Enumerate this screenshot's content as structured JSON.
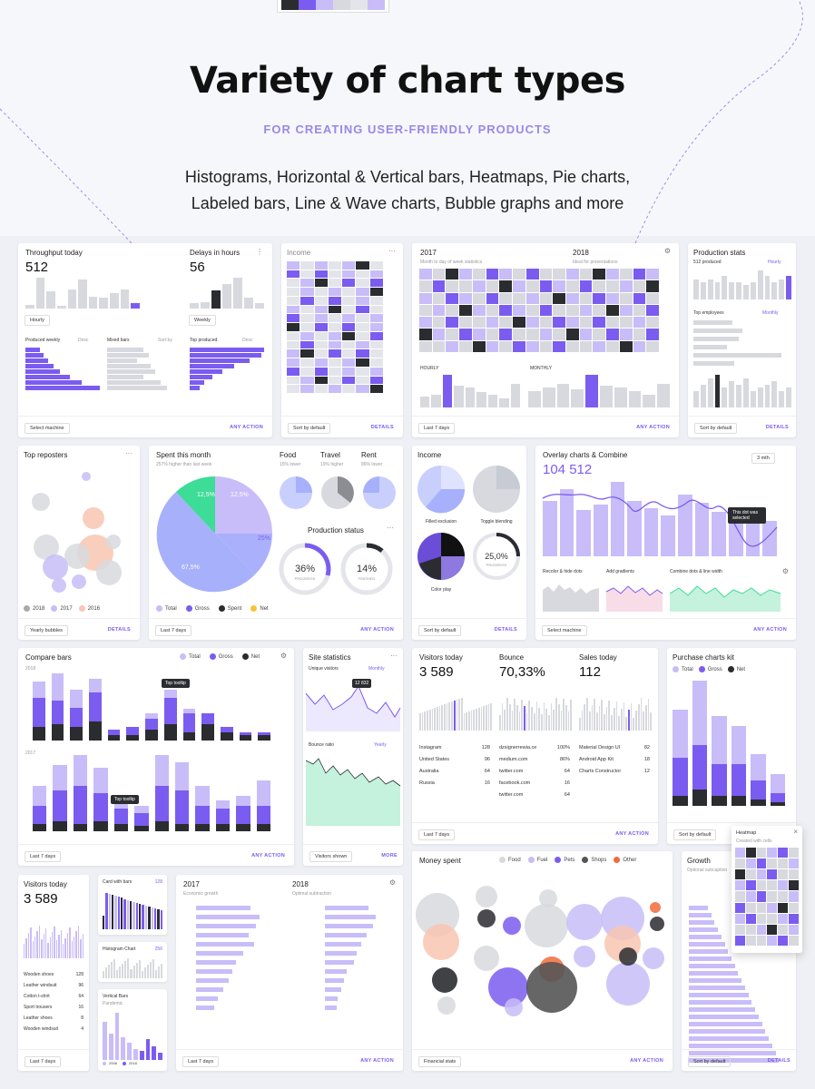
{
  "hero": {
    "title": "Variety of chart types",
    "subtitle": "FOR CREATING USER-FRIENDLY PRODUCTS",
    "desc_line1": "Histograms, Horizontal & Vertical bars, Heatmaps, Pie charts,",
    "desc_line2": "Labeled bars, Line & Wave charts, Bubble graphs and more",
    "swatches": [
      "#2b2c30",
      "#7b5cf0",
      "#c8bdf8",
      "#d8d9de",
      "#e4e5ea",
      "#c8bdf8"
    ]
  },
  "colors": {
    "accent": "#7b5cf0",
    "light": "#c8bdf8",
    "gray": "#d8d9de",
    "dark": "#2b2c30",
    "green": "#3ddc97",
    "orange": "#f26b3a"
  },
  "throughput": {
    "title": "Throughput today",
    "value": "512",
    "delays_title": "Delays in hours",
    "delays_value": "56",
    "hourly": "Hourly",
    "weekly": "Weekly",
    "produced_weekly": "Produced weekly",
    "desc": "Desc",
    "mixed_bars": "Mixed bars",
    "sort_by": "Sort by",
    "top_produced": "Top produced",
    "footer_dropdown": "Select machine",
    "footer_action": "ANY ACTION",
    "bar_values": [
      32,
      256,
      144,
      24,
      156,
      240,
      96,
      88,
      128,
      160,
      48
    ],
    "delay_values": [
      5,
      6,
      18,
      24,
      30,
      11,
      5
    ]
  },
  "income_heat": {
    "title": "Income",
    "footer_dropdown": "Sort by default",
    "footer_action": "DETAILS"
  },
  "heatmap_year": {
    "y1": "2017",
    "y2": "2018",
    "sub1": "Month to day of week statistics",
    "sub2": "Ideal for presentations",
    "hourly": "HOURLY",
    "monthly": "MONTHLY",
    "footer_dropdown": "Last 7 days",
    "footer_action": "ANY ACTION"
  },
  "production": {
    "title": "Production stats",
    "produced": "512 produced",
    "hourly": "Hourly",
    "top_employees": "Top employees",
    "monthly": "Monthly",
    "footer_dropdown": "Sort by default",
    "footer_action": "DETAILS"
  },
  "reposters": {
    "title": "Top reposters",
    "legend": [
      "2018",
      "2017",
      "2016"
    ],
    "footer_dropdown": "Yearly bubbles",
    "footer_action": "DETAILS"
  },
  "spent": {
    "title": "Spent this month",
    "sub": "257% higher than last week",
    "pie_labels": [
      "12,5%",
      "12,5%",
      "25%",
      "67,5%"
    ],
    "food": "Food",
    "travel": "Travel",
    "rent": "Rent",
    "food_sub": "15% lower",
    "travel_sub": "19% higher",
    "rent_sub": "86% lower",
    "production_status": "Production status",
    "progress1": "36%",
    "progress1_label": "PROGRESS",
    "progress2": "14%",
    "progress2_label": "FINISHED",
    "legend": [
      "Total",
      "Gross",
      "Spent",
      "Net"
    ],
    "footer_dropdown": "Last 7 days",
    "footer_action": "ANY ACTION"
  },
  "income_pies": {
    "title": "Income",
    "filled": "Filled exclusion",
    "toggle": "Toggle blending",
    "color_play": "Color play",
    "pct": "25,0%",
    "pct_label": "PROGRESS",
    "footer_dropdown": "Sort by default",
    "footer_action": "DETAILS"
  },
  "overlay": {
    "title": "Overlay charts & Combine",
    "value": "104 512",
    "range": "3 mth",
    "tooltip": "This dot was selected",
    "recolor": "Recolor & hide dots",
    "gradients": "Add gradients",
    "combine": "Combine dots & line width",
    "footer_dropdown": "Select machine",
    "footer_action": "ANY ACTION"
  },
  "compare": {
    "title": "Compare bars",
    "legend": [
      "Total",
      "Gross",
      "Net"
    ],
    "y1": "2018",
    "y2": "2017",
    "tooltip": "Top tooltip",
    "tooltip2": "Top tooltip",
    "footer_dropdown": "Last 7 days",
    "footer_action": "ANY ACTION"
  },
  "site": {
    "title": "Site statistics",
    "unique": "Unique visitors",
    "monthly": "Monthly",
    "bounce": "Bounce ratio",
    "yearly": "Yearly",
    "tip": "12 832",
    "footer_dropdown": "Visitors shown",
    "footer_action": "MORE"
  },
  "visitors": {
    "v_title": "Visitors today",
    "v_value": "3 589",
    "b_title": "Bounce",
    "b_value": "70,33%",
    "s_title": "Sales today",
    "s_value": "112",
    "col1": [
      [
        "Instagram",
        "128"
      ],
      [
        "United States",
        "96"
      ],
      [
        "Australia",
        "64"
      ],
      [
        "Russia",
        "16"
      ]
    ],
    "col2": [
      [
        "dzsignerrewia.ce",
        "100%"
      ],
      [
        "medium.com",
        "86%"
      ],
      [
        "twitter.com",
        "64"
      ],
      [
        "facebook.com",
        "16"
      ],
      [
        "twitter.com",
        "64"
      ]
    ],
    "col3": [
      [
        "Material Design UI",
        "82"
      ],
      [
        "Android App Kit",
        "18"
      ],
      [
        "Charts Constructor",
        "12"
      ]
    ],
    "footer_dropdown": "Last 7 days",
    "footer_action": "ANY ACTION"
  },
  "purchase": {
    "title": "Purchase charts kit",
    "legend": [
      "Total",
      "Gross",
      "Net"
    ],
    "footer_dropdown": "Sort by default"
  },
  "heatmap_popup": {
    "title": "Heatmap",
    "sub": "Created with cells"
  },
  "visitors_small": {
    "title": "Visitors today",
    "value": "3 589",
    "items": [
      [
        "Wooden shoes",
        "128"
      ],
      [
        "Leather windsuit",
        "96"
      ],
      [
        "Cotton t-shirt",
        "64"
      ],
      [
        "Sport trousers",
        "16"
      ],
      [
        "Leather shoes",
        "8"
      ],
      [
        "Wooden windsuit",
        "4"
      ]
    ],
    "footer_dropdown": "Last 7 days"
  },
  "mini": {
    "card_bars": "Card with bars",
    "card_bars_val": "128",
    "histogram": "Histogram Chart",
    "hist_val": "256",
    "vertical": "Vertical Bars",
    "vertical_sub": "Pandemic",
    "legend": [
      "2008",
      "2018"
    ]
  },
  "hbar2017": {
    "y1": "2017",
    "y2": "2018",
    "sub1": "Economic growth",
    "sub2": "Optimal subtraction",
    "footer_dropdown": "Last 7 days",
    "footer_action": "ANY ACTION"
  },
  "money": {
    "title": "Money spent",
    "legend": [
      "Food",
      "Fuel",
      "Pets",
      "Shops",
      "Other"
    ],
    "footer_dropdown": "Financial stats",
    "footer_action": "ANY ACTION"
  },
  "growth": {
    "title": "Growth",
    "sub": "Optional subcaption",
    "footer_dropdown": "Sort by default",
    "footer_action": "DETAILS"
  }
}
